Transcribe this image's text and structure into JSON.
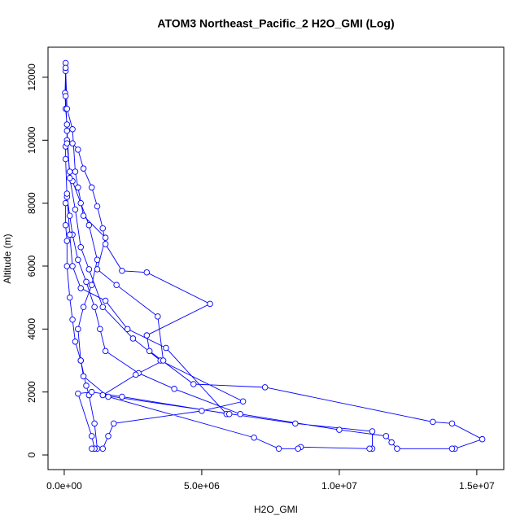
{
  "chart_data": {
    "type": "line",
    "title": "ATOM3 Northeast_Pacific_2 H2O_GMI (Log)",
    "x_label": "H2O_GMI",
    "y_label": "Altitude (m)",
    "color": "#0000ff",
    "xlim": [
      -590000,
      15980000
    ],
    "ylim": [
      -465,
      12955
    ],
    "xticks": [
      {
        "value": 0,
        "label": "0.0e+00"
      },
      {
        "value": 5000000,
        "label": "5.0e+06"
      },
      {
        "value": 10000000,
        "label": "1.0e+07"
      },
      {
        "value": 15000000,
        "label": "1.5e+07"
      }
    ],
    "yticks": [
      0,
      2000,
      4000,
      6000,
      8000,
      10000,
      12000
    ],
    "x": [
      50000,
      50000,
      30000,
      50000,
      100000,
      100000,
      300000,
      500000,
      700000,
      1000000,
      1200000,
      1400000,
      1500000,
      2100000,
      3000000,
      5300000,
      3000000,
      3100000,
      4700000,
      7300000,
      13400000,
      14100000,
      15200000,
      14200000,
      14100000,
      12100000,
      11900000,
      11700000,
      10000000,
      6400000,
      4000000,
      2700000,
      1500000,
      1300000,
      1100000,
      800000,
      500000,
      300000,
      200000,
      100000,
      50000,
      50000,
      100000,
      200000,
      300000,
      600000,
      900000,
      1200000,
      1000000,
      700000,
      500000,
      600000,
      800000,
      900000,
      1100000,
      1200000,
      1100000,
      1400000,
      1600000,
      1800000,
      5000000,
      6500000,
      3500000,
      2500000,
      1400000,
      900000,
      600000,
      400000,
      200000,
      100000,
      50000,
      50000,
      100000,
      300000,
      400000,
      500000,
      700000,
      1500000,
      1200000,
      1900000,
      3400000,
      3600000,
      2600000,
      1400000,
      8400000,
      11200000,
      11200000,
      11100000,
      8600000,
      8500000,
      7800000,
      6900000,
      1600000,
      700000,
      600000,
      400000,
      300000,
      200000,
      100000,
      100000,
      50000,
      50000,
      100000,
      200000,
      300000,
      600000,
      1500000,
      2300000,
      3700000,
      5900000,
      6000000,
      2100000,
      1000000,
      500000,
      1000000,
      1100000,
      1000000
    ],
    "values": [
      12450,
      12200,
      11500,
      11000,
      10500,
      10000,
      9900,
      9700,
      9100,
      8500,
      7900,
      7200,
      6700,
      5850,
      5800,
      4800,
      3800,
      3300,
      2250,
      2150,
      1050,
      1000,
      500,
      200,
      200,
      200,
      400,
      600,
      800,
      1300,
      2100,
      2600,
      3300,
      4000,
      4700,
      5500,
      6200,
      7000,
      7600,
      8200,
      9400,
      9800,
      9900,
      9000,
      8700,
      8000,
      7300,
      6200,
      5400,
      4700,
      4000,
      3000,
      2200,
      1900,
      1000,
      200,
      200,
      200,
      600,
      1000,
      1400,
      1700,
      3000,
      3700,
      4700,
      5900,
      6600,
      7800,
      8800,
      10300,
      11400,
      12300,
      11000,
      10350,
      9000,
      8500,
      7600,
      6900,
      5900,
      5400,
      4400,
      3000,
      2550,
      1900,
      1000,
      750,
      200,
      200,
      250,
      200,
      200,
      550,
      1850,
      2500,
      3000,
      3600,
      4300,
      5000,
      6000,
      6800,
      7300,
      8000,
      8300,
      7000,
      6000,
      5300,
      4900,
      4000,
      3400,
      1300,
      1300,
      1850,
      2000,
      1950,
      600,
      200,
      200
    ]
  }
}
